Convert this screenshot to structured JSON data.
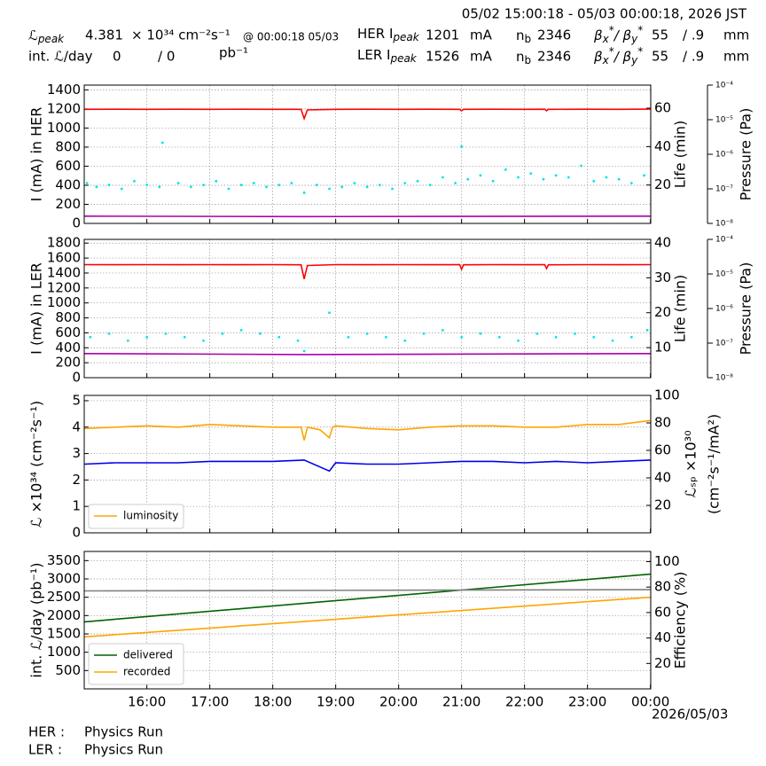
{
  "header": {
    "time_range": "05/02 15:00:18 - 05/03 00:00:18, 2026 JST",
    "lpeak": {
      "symbol": "ℒ",
      "sub": "peak",
      "value": "4.381",
      "unit": "× 10³⁴ cm⁻²s⁻¹",
      "at": "@ 00:00:18 05/03"
    },
    "intl": {
      "label": "int. ℒ/day",
      "value": "0",
      "sep": "/  0",
      "unit": "pb⁻¹"
    },
    "her": {
      "label": "HER I",
      "sub": "peak",
      "current": "1201",
      "unit": "mA",
      "nb": "n",
      "nb_sub": "b",
      "bunches": "2346",
      "beta": "β",
      "bx": "x",
      "star": "*",
      "slash": "/ β",
      "by": "y",
      "beta_x": "55",
      "beta_y": "/ .9",
      "beta_unit": "mm"
    },
    "ler": {
      "label": "LER I",
      "sub": "peak",
      "current": "1526",
      "unit": "mA",
      "nb": "n",
      "nb_sub": "b",
      "bunches": "2346",
      "beta": "β",
      "bx": "x",
      "star": "*",
      "slash": "/ β",
      "by": "y",
      "beta_x": "55",
      "beta_y": "/ .9",
      "beta_unit": "mm"
    }
  },
  "footer": {
    "her_label": "HER :",
    "her_status": "Physics Run",
    "ler_label": "LER :",
    "ler_status": "Physics Run"
  },
  "x_axis": {
    "xlim": [
      15.005,
      24.005
    ],
    "date_label": "2026/05/03",
    "xticks": [
      {
        "value": 16,
        "label": "16:00"
      },
      {
        "value": 17,
        "label": "17:00"
      },
      {
        "value": 18,
        "label": "18:00"
      },
      {
        "value": 19,
        "label": "19:00"
      },
      {
        "value": 20,
        "label": "20:00"
      },
      {
        "value": 21,
        "label": "21:00"
      },
      {
        "value": 22,
        "label": "22:00"
      },
      {
        "value": 23,
        "label": "23:00"
      },
      {
        "value": 24,
        "label": "00:00"
      }
    ]
  },
  "chart_data": [
    {
      "type": "line",
      "ylabel": "I (mA) in HER",
      "ylim": [
        0,
        1450
      ],
      "yticks": [
        0,
        200,
        400,
        600,
        800,
        1000,
        1200,
        1400
      ],
      "grid": true,
      "y2label": [
        "Life (min)"
      ],
      "y2lim": [
        0,
        72
      ],
      "y2ticks": [
        20,
        40,
        60
      ],
      "y3label": "Pressure (Pa)",
      "y3scale": "log",
      "y3lim": [
        1e-08,
        0.0001
      ],
      "y3ticks": [
        {
          "value": 1e-08,
          "label": "10⁻⁸"
        },
        {
          "value": 1e-07,
          "label": "10⁻⁷"
        },
        {
          "value": 1e-06,
          "label": "10⁻⁶"
        },
        {
          "value": 1e-05,
          "label": "10⁻⁵"
        },
        {
          "value": 0.0001,
          "label": "10⁻⁴"
        }
      ],
      "series": [
        {
          "color": "#ff0000",
          "kind": "line",
          "x": [
            15.01,
            15.5,
            16,
            16.5,
            17,
            17.5,
            18,
            18.45,
            18.5,
            18.55,
            19,
            19.5,
            20,
            20.5,
            20.97,
            21.0,
            21.03,
            21.5,
            22,
            22.32,
            22.35,
            22.38,
            23,
            23.5,
            24.0
          ],
          "values": [
            1196,
            1197,
            1196,
            1197,
            1196,
            1197,
            1196,
            1196,
            1100,
            1190,
            1196,
            1197,
            1196,
            1197,
            1196,
            1180,
            1196,
            1197,
            1196,
            1197,
            1180,
            1196,
            1197,
            1196,
            1198
          ]
        },
        {
          "color": "#aa00aa",
          "kind": "line",
          "x": [
            15.01,
            18.5,
            24.0
          ],
          "values": [
            76,
            72,
            76
          ]
        },
        {
          "color": "#00e5e5",
          "kind": "scatter",
          "axis": "y2",
          "x": [
            15.05,
            15.2,
            15.4,
            15.6,
            15.8,
            16.0,
            16.2,
            16.25,
            16.5,
            16.7,
            16.9,
            17.1,
            17.3,
            17.5,
            17.7,
            17.9,
            18.1,
            18.3,
            18.5,
            18.7,
            18.9,
            19.1,
            19.3,
            19.5,
            19.7,
            19.9,
            20.1,
            20.3,
            20.5,
            20.7,
            20.9,
            21.0,
            21.1,
            21.3,
            21.5,
            21.7,
            21.9,
            22.1,
            22.3,
            22.5,
            22.7,
            22.9,
            23.1,
            23.3,
            23.5,
            23.7,
            23.9
          ],
          "values": [
            21,
            19,
            20,
            18,
            22,
            20,
            19,
            42,
            21,
            19,
            20,
            22,
            18,
            20,
            21,
            19,
            20,
            21,
            16,
            20,
            18,
            19,
            21,
            19,
            20,
            18,
            21,
            22,
            20,
            24,
            21,
            40,
            23,
            25,
            22,
            28,
            24,
            26,
            23,
            25,
            24,
            30,
            22,
            24,
            23,
            21,
            25
          ]
        }
      ]
    },
    {
      "type": "line",
      "ylabel": "I (mA) in LER",
      "ylim": [
        0,
        1850
      ],
      "yticks": [
        0,
        200,
        400,
        600,
        800,
        1000,
        1200,
        1400,
        1600,
        1800
      ],
      "grid": true,
      "y2label": [
        "Life (min)"
      ],
      "y2lim": [
        1.4,
        41
      ],
      "y2ticks": [
        10,
        20,
        30,
        40
      ],
      "y3label": "Pressure (Pa)",
      "y3scale": "log",
      "y3lim": [
        1e-08,
        0.0001
      ],
      "y3ticks": [
        {
          "value": 1e-08,
          "label": "10⁻⁸"
        },
        {
          "value": 1e-07,
          "label": "10⁻⁷"
        },
        {
          "value": 1e-06,
          "label": "10⁻⁶"
        },
        {
          "value": 1e-05,
          "label": "10⁻⁵"
        },
        {
          "value": 0.0001,
          "label": "10⁻⁴"
        }
      ],
      "series": [
        {
          "color": "#ff0000",
          "kind": "line",
          "x": [
            15.01,
            15.5,
            16,
            16.5,
            17,
            17.5,
            18,
            18.45,
            18.5,
            18.55,
            19,
            19.5,
            20,
            20.5,
            20.97,
            21.0,
            21.03,
            21.5,
            22,
            22.32,
            22.35,
            22.38,
            23,
            23.5,
            24.0
          ],
          "values": [
            1512,
            1511,
            1512,
            1511,
            1512,
            1511,
            1512,
            1510,
            1320,
            1500,
            1512,
            1511,
            1512,
            1511,
            1512,
            1450,
            1510,
            1512,
            1511,
            1512,
            1460,
            1510,
            1512,
            1511,
            1512
          ]
        },
        {
          "color": "#aa00aa",
          "kind": "line",
          "x": [
            15.01,
            18.5,
            24.0
          ],
          "values": [
            322,
            310,
            322
          ]
        },
        {
          "color": "#00e5e5",
          "kind": "scatter",
          "axis": "y2",
          "x": [
            15.1,
            15.4,
            15.7,
            16.0,
            16.3,
            16.6,
            16.9,
            17.2,
            17.5,
            17.8,
            18.1,
            18.4,
            18.5,
            18.9,
            19.2,
            19.5,
            19.8,
            20.1,
            20.4,
            20.7,
            21.0,
            21.3,
            21.6,
            21.9,
            22.2,
            22.5,
            22.8,
            23.1,
            23.4,
            23.7,
            23.95
          ],
          "values": [
            13,
            14,
            12,
            13,
            14,
            13,
            12,
            14,
            15,
            14,
            13,
            12,
            9,
            20,
            13,
            14,
            13,
            12,
            14,
            15,
            13,
            14,
            13,
            12,
            14,
            13,
            14,
            13,
            12,
            13,
            15
          ]
        }
      ]
    },
    {
      "type": "line",
      "ylabel": "ℒ ×10³⁴ (cm⁻²s⁻¹)",
      "ylim": [
        0,
        5.2
      ],
      "yticks": [
        0,
        1,
        2,
        3,
        4,
        5
      ],
      "grid": true,
      "y2label": [
        "ℒₛₚ ×10³⁰",
        "(cm⁻²s⁻¹/mA²)"
      ],
      "y2lim": [
        0,
        100
      ],
      "y2ticks": [
        20,
        40,
        60,
        80,
        100
      ],
      "legend": "lower left",
      "series": [
        {
          "name": "luminosity",
          "color": "#ffa500",
          "kind": "line",
          "x": [
            15.01,
            15.5,
            16,
            16.5,
            17,
            17.5,
            18,
            18.45,
            18.5,
            18.55,
            18.75,
            18.9,
            18.95,
            19.0,
            19.5,
            20,
            20.5,
            21,
            21.5,
            22,
            22.5,
            23,
            23.5,
            24.0
          ],
          "values": [
            3.95,
            4.0,
            4.05,
            4.0,
            4.1,
            4.05,
            4.0,
            4.0,
            3.5,
            4.0,
            3.9,
            3.6,
            4.0,
            4.05,
            3.95,
            3.9,
            4.0,
            4.05,
            4.05,
            4.0,
            4.0,
            4.1,
            4.1,
            4.25
          ]
        },
        {
          "color": "#0000ee",
          "kind": "line",
          "axis": "y2",
          "x": [
            15.01,
            15.5,
            16,
            16.5,
            17,
            17.5,
            18,
            18.5,
            18.9,
            19.0,
            19.5,
            20,
            20.5,
            21,
            21.5,
            22,
            22.5,
            23,
            23.5,
            24.0
          ],
          "values": [
            50,
            51,
            51,
            51,
            52,
            52,
            52,
            53,
            45,
            51,
            50,
            50,
            51,
            52,
            52,
            51,
            52,
            51,
            52,
            53
          ]
        }
      ]
    },
    {
      "type": "line",
      "ylabel": "int. ℒ/day (pb⁻¹)",
      "ylim": [
        0,
        3750
      ],
      "yticks": [
        500,
        1000,
        1500,
        2000,
        2500,
        3000,
        3500
      ],
      "grid": true,
      "y2label": [
        "Efficiency (%)"
      ],
      "y2lim": [
        0,
        108
      ],
      "y2ticks": [
        20,
        40,
        60,
        80,
        100
      ],
      "legend": "lower left",
      "series": [
        {
          "name": "delivered",
          "color": "#006400",
          "kind": "line",
          "x": [
            15.01,
            24.0
          ],
          "values": [
            1830,
            3130
          ]
        },
        {
          "name": "recorded",
          "color": "#ffa500",
          "kind": "line",
          "x": [
            15.01,
            24.0
          ],
          "values": [
            1420,
            2500
          ]
        },
        {
          "color": "#808080",
          "kind": "line",
          "axis": "y2",
          "x": [
            15.01,
            24.0
          ],
          "values": [
            77,
            78
          ]
        }
      ]
    }
  ]
}
